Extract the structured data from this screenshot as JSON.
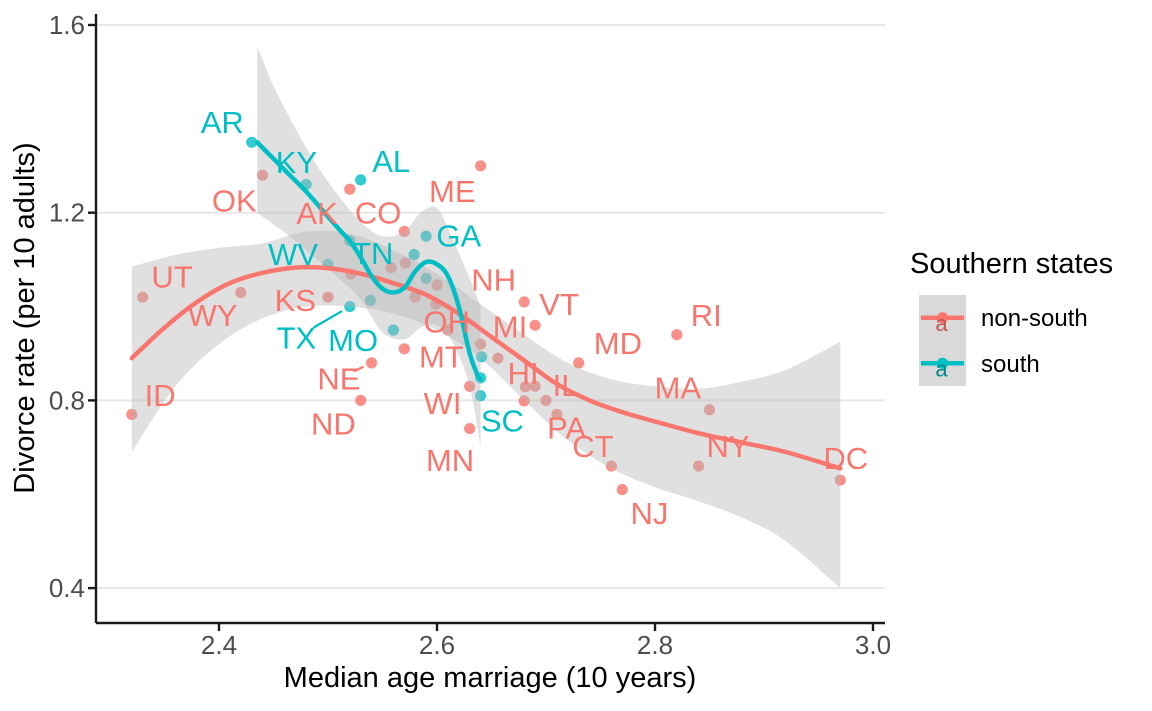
{
  "chart_data": {
    "type": "scatter",
    "subtype": "scatter_with_loess_smooth_and_labels",
    "title": "",
    "xlabel": "Median age marriage (10 years)",
    "ylabel": "Divorce rate (per 10 adults)",
    "x_ticks": [
      2.4,
      2.6,
      2.8,
      3.0
    ],
    "y_ticks": [
      0.4,
      0.8,
      1.2,
      1.6
    ],
    "xlim": [
      2.287,
      3.011
    ],
    "ylim": [
      0.326,
      1.623
    ],
    "grid": "horizontal-major-only",
    "colors": {
      "non_south": "#F8766D",
      "south": "#00BFC4",
      "band": "#b5b5b5",
      "gridline": "#e7e7e7",
      "axis": "#1a1a1a",
      "tick_text": "#4d4d4d",
      "legend_key_bg": "#d9d9d9",
      "legend_a_nonsouth": "#c0564e",
      "legend_a_south": "#00888c"
    },
    "legend": {
      "title": "Southern states",
      "position": "right",
      "items": [
        {
          "label": "non-south",
          "group": "non_south",
          "color": "#F8766D"
        },
        {
          "label": "south",
          "group": "south",
          "color": "#00BFC4"
        }
      ]
    },
    "states": [
      {
        "abbr": "AR",
        "x": 2.43,
        "y": 1.35,
        "group": "south",
        "lx": 2.403,
        "ly": 1.393
      },
      {
        "abbr": "KY",
        "x": 2.48,
        "y": 1.26,
        "group": "south",
        "lx": 2.471,
        "ly": 1.308
      },
      {
        "abbr": "AL",
        "x": 2.53,
        "y": 1.27,
        "group": "south",
        "lx": 2.558,
        "ly": 1.31
      },
      {
        "abbr": "TN",
        "x": 2.52,
        "y": 1.14,
        "group": "south",
        "lx": 2.541,
        "ly": 1.114
      },
      {
        "abbr": "GA",
        "x": 2.59,
        "y": 1.15,
        "group": "south",
        "lx": 2.62,
        "ly": 1.151
      },
      {
        "abbr": "WV",
        "x": 2.5,
        "y": 1.09,
        "group": "south",
        "lx": 2.468,
        "ly": 1.112
      },
      {
        "abbr": "TX",
        "x": 2.52,
        "y": 1.0,
        "group": "south",
        "lx": 2.471,
        "ly": 0.934,
        "leader": true
      },
      {
        "abbr": "MO",
        "x": 2.56,
        "y": 0.95,
        "group": "south",
        "lx": 2.523,
        "ly": 0.929
      },
      {
        "abbr": "SC",
        "x": 2.64,
        "y": 0.81,
        "group": "south",
        "lx": 2.66,
        "ly": 0.757
      },
      {
        "abbr": "OK",
        "x": 2.44,
        "y": 1.28,
        "group": "non_south",
        "lx": 2.414,
        "ly": 1.226
      },
      {
        "abbr": "ME",
        "x": 2.64,
        "y": 1.3,
        "group": "non_south",
        "lx": 2.614,
        "ly": 1.246
      },
      {
        "abbr": "AK",
        "x": 2.52,
        "y": 1.25,
        "group": "non_south",
        "lx": 2.49,
        "ly": 1.199
      },
      {
        "abbr": "CO",
        "x": 2.57,
        "y": 1.16,
        "group": "non_south",
        "lx": 2.546,
        "ly": 1.2
      },
      {
        "abbr": "UT",
        "x": 2.33,
        "y": 1.02,
        "group": "non_south",
        "lx": 2.357,
        "ly": 1.064
      },
      {
        "abbr": "WY",
        "x": 2.42,
        "y": 1.03,
        "group": "non_south",
        "lx": 2.394,
        "ly": 0.982
      },
      {
        "abbr": "KS",
        "x": 2.5,
        "y": 1.02,
        "group": "non_south",
        "lx": 2.47,
        "ly": 1.014
      },
      {
        "abbr": "ID",
        "x": 2.32,
        "y": 0.77,
        "group": "non_south",
        "lx": 2.346,
        "ly": 0.811
      },
      {
        "abbr": "NE",
        "x": 2.54,
        "y": 0.88,
        "group": "non_south",
        "lx": 2.51,
        "ly": 0.847,
        "leader": true
      },
      {
        "abbr": "ND",
        "x": 2.53,
        "y": 0.8,
        "group": "non_south",
        "lx": 2.505,
        "ly": 0.751
      },
      {
        "abbr": "MT",
        "x": 2.57,
        "y": 0.91,
        "group": "non_south",
        "lx": 2.604,
        "ly": 0.894
      },
      {
        "abbr": "OH",
        "x": 2.61,
        "y": 0.95,
        "group": "non_south",
        "lx": 2.609,
        "ly": 0.968
      },
      {
        "abbr": "NH",
        "x": 2.68,
        "y": 1.01,
        "group": "non_south",
        "lx": 2.652,
        "ly": 1.058
      },
      {
        "abbr": "VT",
        "x": 2.69,
        "y": 0.96,
        "group": "non_south",
        "lx": 2.712,
        "ly": 1.005
      },
      {
        "abbr": "MI",
        "x": 2.64,
        "y": 0.92,
        "group": "non_south",
        "lx": 2.667,
        "ly": 0.957
      },
      {
        "abbr": "MD",
        "x": 2.73,
        "y": 0.88,
        "group": "non_south",
        "lx": 2.766,
        "ly": 0.922
      },
      {
        "abbr": "HI",
        "x": 2.69,
        "y": 0.83,
        "group": "non_south",
        "lx": 2.679,
        "ly": 0.858
      },
      {
        "abbr": "IL",
        "x": 2.7,
        "y": 0.8,
        "group": "non_south",
        "lx": 2.718,
        "ly": 0.833
      },
      {
        "abbr": "WI",
        "x": 2.63,
        "y": 0.83,
        "group": "non_south",
        "lx": 2.605,
        "ly": 0.794
      },
      {
        "abbr": "MN",
        "x": 2.63,
        "y": 0.74,
        "group": "non_south",
        "lx": 2.612,
        "ly": 0.673
      },
      {
        "abbr": "PA",
        "x": 2.71,
        "y": 0.77,
        "group": "non_south",
        "lx": 2.719,
        "ly": 0.742
      },
      {
        "abbr": "CT",
        "x": 2.76,
        "y": 0.66,
        "group": "non_south",
        "lx": 2.743,
        "ly": 0.703
      },
      {
        "abbr": "MA",
        "x": 2.85,
        "y": 0.78,
        "group": "non_south",
        "lx": 2.821,
        "ly": 0.828
      },
      {
        "abbr": "RI",
        "x": 2.82,
        "y": 0.94,
        "group": "non_south",
        "lx": 2.847,
        "ly": 0.982
      },
      {
        "abbr": "NY",
        "x": 2.84,
        "y": 0.66,
        "group": "non_south",
        "lx": 2.867,
        "ly": 0.703
      },
      {
        "abbr": "NJ",
        "x": 2.77,
        "y": 0.61,
        "group": "non_south",
        "lx": 2.795,
        "ly": 0.56
      },
      {
        "abbr": "DC",
        "x": 2.97,
        "y": 0.63,
        "group": "non_south",
        "lx": 2.975,
        "ly": 0.677
      }
    ],
    "unlabeled_points": {
      "south": [
        [
          2.579,
          1.111
        ],
        [
          2.59,
          1.06
        ],
        [
          2.539,
          1.013
        ],
        [
          2.641,
          0.893
        ],
        [
          2.64,
          0.848
        ]
      ],
      "non_south": [
        [
          2.571,
          1.093
        ],
        [
          2.558,
          1.083
        ],
        [
          2.521,
          1.069
        ],
        [
          2.58,
          1.02
        ],
        [
          2.6,
          1.046
        ],
        [
          2.599,
          1.005
        ],
        [
          2.656,
          0.89
        ],
        [
          2.681,
          0.829
        ],
        [
          2.68,
          0.799
        ]
      ]
    },
    "smooth_lines": {
      "non_south": [
        [
          2.32,
          0.89
        ],
        [
          2.35,
          0.955
        ],
        [
          2.38,
          1.01
        ],
        [
          2.41,
          1.05
        ],
        [
          2.44,
          1.072
        ],
        [
          2.47,
          1.083
        ],
        [
          2.5,
          1.082
        ],
        [
          2.53,
          1.07
        ],
        [
          2.56,
          1.05
        ],
        [
          2.59,
          1.025
        ],
        [
          2.62,
          0.985
        ],
        [
          2.65,
          0.935
        ],
        [
          2.68,
          0.885
        ],
        [
          2.71,
          0.835
        ],
        [
          2.74,
          0.8
        ],
        [
          2.77,
          0.775
        ],
        [
          2.8,
          0.755
        ],
        [
          2.84,
          0.73
        ],
        [
          2.88,
          0.71
        ],
        [
          2.92,
          0.69
        ],
        [
          2.97,
          0.655
        ]
      ],
      "south": [
        [
          2.435,
          1.35
        ],
        [
          2.45,
          1.315
        ],
        [
          2.465,
          1.28
        ],
        [
          2.48,
          1.245
        ],
        [
          2.495,
          1.205
        ],
        [
          2.51,
          1.165
        ],
        [
          2.52,
          1.14
        ],
        [
          2.53,
          1.105
        ],
        [
          2.54,
          1.065
        ],
        [
          2.55,
          1.038
        ],
        [
          2.56,
          1.03
        ],
        [
          2.57,
          1.04
        ],
        [
          2.58,
          1.075
        ],
        [
          2.59,
          1.095
        ],
        [
          2.6,
          1.09
        ],
        [
          2.61,
          1.065
        ],
        [
          2.62,
          1.0
        ],
        [
          2.63,
          0.9
        ],
        [
          2.637,
          0.855
        ],
        [
          2.64,
          0.845
        ]
      ]
    },
    "confidence_bands": {
      "non_south": {
        "upper": [
          [
            2.32,
            1.085
          ],
          [
            2.36,
            1.11
          ],
          [
            2.4,
            1.125
          ],
          [
            2.44,
            1.135
          ],
          [
            2.48,
            1.16
          ],
          [
            2.52,
            1.155
          ],
          [
            2.56,
            1.12
          ],
          [
            2.6,
            1.07
          ],
          [
            2.64,
            1.005
          ],
          [
            2.68,
            0.94
          ],
          [
            2.72,
            0.88
          ],
          [
            2.76,
            0.845
          ],
          [
            2.8,
            0.83
          ],
          [
            2.84,
            0.825
          ],
          [
            2.88,
            0.84
          ],
          [
            2.92,
            0.865
          ],
          [
            2.97,
            0.925
          ]
        ],
        "lower": [
          [
            2.32,
            0.69
          ],
          [
            2.36,
            0.83
          ],
          [
            2.4,
            0.92
          ],
          [
            2.44,
            0.975
          ],
          [
            2.48,
            1.0
          ],
          [
            2.52,
            1.0
          ],
          [
            2.56,
            0.985
          ],
          [
            2.6,
            0.95
          ],
          [
            2.64,
            0.89
          ],
          [
            2.68,
            0.8
          ],
          [
            2.72,
            0.715
          ],
          [
            2.76,
            0.655
          ],
          [
            2.8,
            0.615
          ],
          [
            2.84,
            0.585
          ],
          [
            2.88,
            0.55
          ],
          [
            2.92,
            0.5
          ],
          [
            2.97,
            0.4
          ]
        ]
      },
      "south": {
        "upper": [
          [
            2.435,
            1.555
          ],
          [
            2.45,
            1.47
          ],
          [
            2.47,
            1.38
          ],
          [
            2.49,
            1.3
          ],
          [
            2.51,
            1.235
          ],
          [
            2.53,
            1.18
          ],
          [
            2.55,
            1.15
          ],
          [
            2.57,
            1.16
          ],
          [
            2.585,
            1.2
          ],
          [
            2.6,
            1.21
          ],
          [
            2.615,
            1.14
          ],
          [
            2.63,
            1.06
          ],
          [
            2.64,
            1.0
          ]
        ],
        "lower": [
          [
            2.435,
            1.2
          ],
          [
            2.45,
            1.175
          ],
          [
            2.47,
            1.14
          ],
          [
            2.49,
            1.1
          ],
          [
            2.51,
            1.06
          ],
          [
            2.53,
            1.015
          ],
          [
            2.55,
            0.945
          ],
          [
            2.57,
            0.93
          ],
          [
            2.585,
            0.955
          ],
          [
            2.6,
            0.96
          ],
          [
            2.615,
            0.92
          ],
          [
            2.63,
            0.83
          ],
          [
            2.64,
            0.7
          ]
        ]
      }
    }
  }
}
